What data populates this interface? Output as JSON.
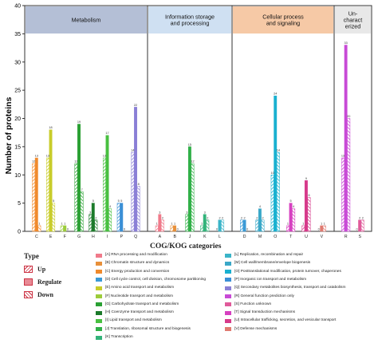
{
  "chart_data": {
    "type": "bar",
    "ylabel": "Number of proteins",
    "ylim": [
      0,
      40
    ],
    "yticks": [
      0,
      5,
      10,
      15,
      20,
      25,
      30,
      35,
      40
    ],
    "xlabel": "COG/KOG categories",
    "panels": [
      {
        "label": "Metabolism",
        "color": "#b4bfd6"
      },
      {
        "label": "Information storage and processing",
        "color": "#cfe0f2"
      },
      {
        "label": "Cellular process and signaling",
        "color": "#f6c9a6"
      },
      {
        "label": "Un-charact characterized",
        "display": "Un-\ncharact\nerized",
        "color": "#e8e8e8"
      }
    ],
    "categories": [
      {
        "code": "C",
        "color": "#f08a2c",
        "up": 12,
        "regulate": 13,
        "down": 1
      },
      {
        "code": "E",
        "color": "#c8cc2a",
        "up": 13,
        "regulate": 18,
        "down": 5
      },
      {
        "code": "F",
        "color": "#9ccc3a",
        "up": 1,
        "regulate": 1,
        "down": 0
      },
      {
        "code": "G",
        "color": "#2aa033",
        "up": 12,
        "regulate": 19,
        "down": 7
      },
      {
        "code": "H",
        "color": "#1b7a2a",
        "up": 3,
        "regulate": 5,
        "down": 2
      },
      {
        "code": "I",
        "color": "#48c040",
        "up": 13,
        "regulate": 17,
        "down": 4
      },
      {
        "code": "P",
        "color": "#3a8fd6",
        "up": 5,
        "regulate": 5,
        "down": 0
      },
      {
        "code": "Q",
        "color": "#8a7fd6",
        "up": 14,
        "regulate": 22,
        "down": 8
      },
      {
        "code": "A",
        "color": "#f07a8a",
        "up": 1,
        "regulate": 3,
        "down": 2
      },
      {
        "code": "B",
        "color": "#e8903a",
        "up": 1,
        "regulate": 1,
        "down": 0
      },
      {
        "code": "J",
        "color": "#30b048",
        "up": 3,
        "regulate": 15,
        "down": 12
      },
      {
        "code": "K",
        "color": "#33b37a",
        "up": 1,
        "regulate": 3,
        "down": 2
      },
      {
        "code": "L",
        "color": "#3ab4c8",
        "up": 0,
        "regulate": 2,
        "down": 2
      },
      {
        "code": "D",
        "color": "#3a9ad6",
        "up": 2,
        "regulate": 2,
        "down": 0
      },
      {
        "code": "M",
        "color": "#3aa8c8",
        "up": 2,
        "regulate": 4,
        "down": 2
      },
      {
        "code": "O",
        "color": "#19b0d0",
        "up": 10,
        "regulate": 24,
        "down": 14
      },
      {
        "code": "T",
        "color": "#d640c0",
        "up": 1,
        "regulate": 5,
        "down": 4
      },
      {
        "code": "U",
        "color": "#d63a8a",
        "up": 1,
        "regulate": 9,
        "down": 6
      },
      {
        "code": "V",
        "color": "#e07a70",
        "up": 0,
        "regulate": 1,
        "down": 1
      },
      {
        "code": "R",
        "color": "#c84ad6",
        "up": 13,
        "regulate": 33,
        "down": 20
      },
      {
        "code": "S",
        "color": "#e05a9a",
        "up": 0,
        "regulate": 2,
        "down": 2
      }
    ],
    "groups": [
      [
        0,
        1,
        2,
        3,
        4,
        5,
        6,
        7
      ],
      [
        8,
        9,
        10,
        11,
        12
      ],
      [
        13,
        14,
        15,
        16,
        17,
        18
      ],
      [
        19,
        20
      ]
    ],
    "series": [
      {
        "name": "Up",
        "pattern": "up"
      },
      {
        "name": "Regulate",
        "pattern": "solid"
      },
      {
        "name": "Down",
        "pattern": "down"
      }
    ]
  },
  "legend_type": {
    "title": "Type",
    "items": [
      "Up",
      "Regulate",
      "Down"
    ]
  },
  "legend_categories": [
    {
      "text": "[A] RNA processing and modification",
      "color": "#f07a8a"
    },
    {
      "text": "[B] Chromatin structure and dynamics",
      "color": "#e8903a"
    },
    {
      "text": "[C] Energy production and conversion",
      "color": "#f08a2c"
    },
    {
      "text": "[D] Cell cycle control, cell division, chromosome partitioning",
      "color": "#3a9ad6"
    },
    {
      "text": "[E] Amino acid transport and metabolism",
      "color": "#c8cc2a"
    },
    {
      "text": "[F] Nucleotide transport and metabolism",
      "color": "#9ccc3a"
    },
    {
      "text": "[G] Carbohydrate transport and metabolism",
      "color": "#2aa033"
    },
    {
      "text": "[H] Coenzyme transport and metabolism",
      "color": "#1b7a2a"
    },
    {
      "text": "[I] Lipid transport and metabolism",
      "color": "#48c040"
    },
    {
      "text": "[J] Translation, ribosomal structure and biogenesis",
      "color": "#30b048"
    },
    {
      "text": "[K] Transcription",
      "color": "#33b37a"
    },
    {
      "text": "[L] Replication, recombination and repair",
      "color": "#3ab4c8"
    },
    {
      "text": "[M] Cell wall/membrane/envelope biogenesis",
      "color": "#3aa8c8"
    },
    {
      "text": "[O] Posttranslational modification, protein turnover, chaperones",
      "color": "#19b0d0"
    },
    {
      "text": "[P] Inorganic ion transport and metabolism",
      "color": "#3a8fd6"
    },
    {
      "text": "[Q] Secondary metabolites biosynthesis, transport and catabolism",
      "color": "#8a7fd6"
    },
    {
      "text": "[R] General function prediction only",
      "color": "#c84ad6"
    },
    {
      "text": "[S] Function unknown",
      "color": "#e05a9a"
    },
    {
      "text": "[T] Signal transduction mechanisms",
      "color": "#d640c0"
    },
    {
      "text": "[U] Intracellular trafficking, secretion, and vesicular transport",
      "color": "#d63a8a"
    },
    {
      "text": "[V] Defense mechanisms",
      "color": "#e07a70"
    }
  ]
}
